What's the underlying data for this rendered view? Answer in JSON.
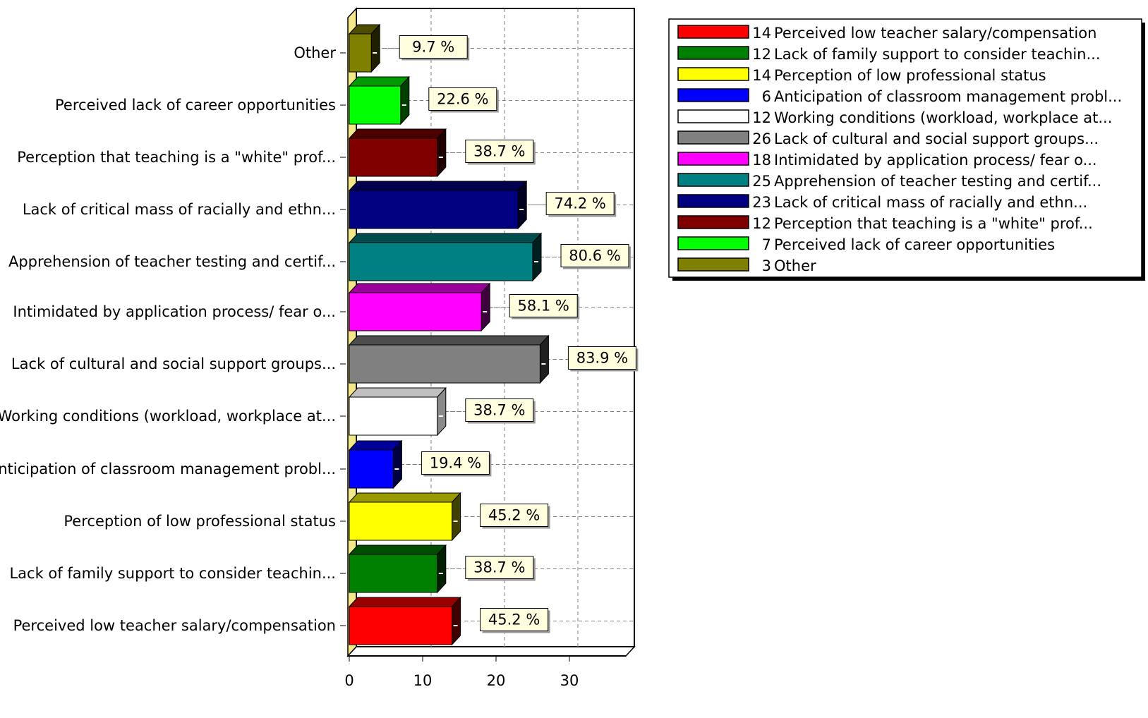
{
  "chart_data": {
    "type": "bar",
    "orientation": "horizontal",
    "categories": [
      "Perceived low teacher salary/compensation",
      "Lack of family support to consider teachin...",
      "Perception of low professional status",
      "Anticipation of classroom management probl...",
      "Working conditions (workload, workplace at...",
      "Lack of cultural and social support groups...",
      "Intimidated by application process/ fear o...",
      "Apprehension of teacher testing and certif...",
      "Lack of critical mass of racially and ethn...",
      "Perception that teaching is a \"white\" prof...",
      "Perceived lack of career opportunities",
      "Other"
    ],
    "values": [
      14,
      12,
      14,
      6,
      12,
      26,
      18,
      25,
      23,
      12,
      7,
      3
    ],
    "percent_labels": [
      "45.2 %",
      "38.7 %",
      "45.2 %",
      "19.4 %",
      "38.7 %",
      "83.9 %",
      "58.1 %",
      "80.6 %",
      "74.2 %",
      "38.7 %",
      "22.6 %",
      "9.7 %"
    ],
    "colors": [
      "#ff0000",
      "#008000",
      "#ffff00",
      "#0000ff",
      "#ffffff",
      "#808080",
      "#ff00ff",
      "#008080",
      "#000080",
      "#800000",
      "#00ff00",
      "#808000"
    ],
    "xlim": [
      0,
      38
    ],
    "xticks": [
      "0",
      "10",
      "20",
      "30"
    ],
    "xtick_values": [
      0,
      10,
      20,
      30
    ],
    "title": "",
    "xlabel": "",
    "ylabel": "",
    "grid": true,
    "legend_position": "top-right",
    "legend": [
      {
        "count": "14",
        "label": "Perceived low teacher salary/compensation"
      },
      {
        "count": "12",
        "label": "Lack of family support to consider teachin..."
      },
      {
        "count": "14",
        "label": "Perception of low professional status"
      },
      {
        "count": "6",
        "label": "Anticipation of classroom management probl..."
      },
      {
        "count": "12",
        "label": "Working conditions (workload, workplace at..."
      },
      {
        "count": "26",
        "label": "Lack of cultural and social support groups..."
      },
      {
        "count": "18",
        "label": "Intimidated by application process/ fear o..."
      },
      {
        "count": "25",
        "label": "Apprehension of teacher testing and certif..."
      },
      {
        "count": "23",
        "label": "Lack of critical mass of racially and ethn..."
      },
      {
        "count": "12",
        "label": "Perception that teaching is a \"white\" prof..."
      },
      {
        "count": "7",
        "label": "Perceived lack of career opportunities"
      },
      {
        "count": "3",
        "label": "Other"
      }
    ]
  }
}
